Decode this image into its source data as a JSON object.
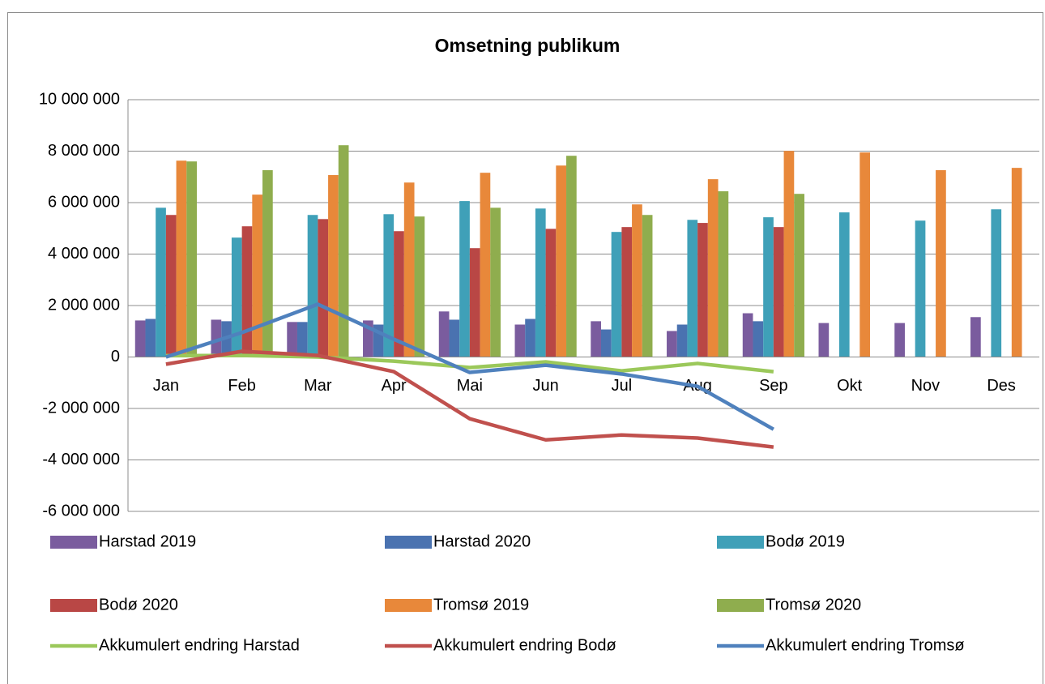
{
  "chart_data": {
    "type": "bar",
    "title": "Omsetning publikum",
    "categories": [
      "Jan",
      "Feb",
      "Mar",
      "Apr",
      "Mai",
      "Jun",
      "Jul",
      "Aug",
      "Sep",
      "Okt",
      "Nov",
      "Des"
    ],
    "ylim": [
      -6000000,
      10000000
    ],
    "yticks": [
      {
        "value": -6000000,
        "label": "-6 000 000"
      },
      {
        "value": -4000000,
        "label": "-4 000 000"
      },
      {
        "value": -2000000,
        "label": "-2 000 000"
      },
      0,
      {
        "value": 2000000,
        "label": "2 000 000"
      },
      {
        "value": 4000000,
        "label": "4 000 000"
      },
      {
        "value": 6000000,
        "label": "6 000 000"
      },
      {
        "value": 8000000,
        "label": "8 000 000"
      },
      {
        "value": 10000000,
        "label": "10 000 000"
      }
    ],
    "grid": true,
    "series": [
      {
        "name": "Harstad 2019",
        "type": "bar",
        "color": "#7a5c9e",
        "values": [
          1420000,
          1450000,
          1360000,
          1420000,
          1770000,
          1260000,
          1390000,
          1010000,
          1700000,
          1320000,
          1320000,
          1550000
        ]
      },
      {
        "name": "Harstad 2020",
        "type": "bar",
        "color": "#4a72b0",
        "values": [
          1480000,
          1390000,
          1360000,
          1260000,
          1450000,
          1480000,
          1070000,
          1260000,
          1390000,
          null,
          null,
          null
        ]
      },
      {
        "name": "Bodø 2019",
        "type": "bar",
        "color": "#3fa0b8",
        "values": [
          5800000,
          4640000,
          5520000,
          5550000,
          6060000,
          5770000,
          4860000,
          5330000,
          5430000,
          5620000,
          5300000,
          5740000
        ]
      },
      {
        "name": "Bodø 2020",
        "type": "bar",
        "color": "#b94745",
        "values": [
          5520000,
          5080000,
          5360000,
          4890000,
          4230000,
          4980000,
          5050000,
          5210000,
          5050000,
          null,
          null,
          null
        ]
      },
      {
        "name": "Tromsø 2019",
        "type": "bar",
        "color": "#e8883a",
        "values": [
          7630000,
          6310000,
          7070000,
          6780000,
          7160000,
          7440000,
          5930000,
          6910000,
          8010000,
          7950000,
          7260000,
          7350000
        ]
      },
      {
        "name": "Tromsø 2020",
        "type": "bar",
        "color": "#8fad4e",
        "values": [
          7600000,
          7260000,
          8230000,
          5460000,
          5800000,
          7820000,
          5520000,
          6440000,
          6340000,
          null,
          null,
          null
        ]
      },
      {
        "name": "Akkumulert endring Harstad",
        "type": "line",
        "color": "#9bc85a",
        "values": [
          50000,
          60000,
          0,
          -160000,
          -410000,
          -190000,
          -540000,
          -250000,
          -570000,
          null,
          null,
          null
        ]
      },
      {
        "name": "Akkumulert endring Bodø",
        "type": "line",
        "color": "#c0504d",
        "values": [
          -280000,
          220000,
          60000,
          -570000,
          -2400000,
          -3220000,
          -3030000,
          -3150000,
          -3500000,
          null,
          null,
          null
        ]
      },
      {
        "name": "Akkumulert endring Tromsø",
        "type": "line",
        "color": "#4f81bd",
        "values": [
          0,
          950000,
          2050000,
          690000,
          -600000,
          -320000,
          -660000,
          -1140000,
          -2810000,
          null,
          null,
          null
        ]
      }
    ]
  }
}
